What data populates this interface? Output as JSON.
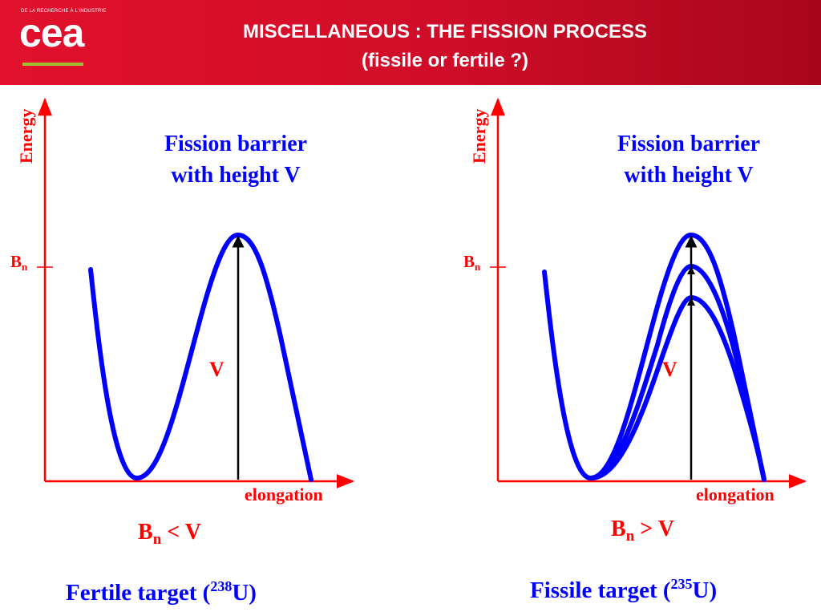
{
  "header": {
    "logo_tagline": "DE LA RECHERCHE À L'INDUSTRIE",
    "logo_text": "cea",
    "title_line1": "MISCELLANEOUS : THE FISSION PROCESS",
    "title_line2": "(fissile or fertile ?)"
  },
  "left_panel": {
    "y_axis_label": "Energy",
    "x_axis_label": "elongation",
    "bn_label": "B",
    "bn_sub": "n",
    "barrier_line1": "Fission barrier",
    "barrier_line2": "with height V",
    "v_label": "V",
    "inequality_b": "B",
    "inequality_sub": "n",
    "inequality_rest": " < V",
    "target_prefix": "Fertile target (",
    "target_mass": "238",
    "target_suffix": "U)"
  },
  "right_panel": {
    "y_axis_label": "Energy",
    "x_axis_label": "elongation",
    "bn_label": "B",
    "bn_sub": "n",
    "barrier_line1": "Fission barrier",
    "barrier_line2": "with height V",
    "v_label": "V",
    "inequality_b": "B",
    "inequality_sub": "n",
    "inequality_rest": " > V",
    "target_prefix": "Fissile target (",
    "target_mass": "235",
    "target_suffix": "U)"
  },
  "colors": {
    "header_red": "#e2102c",
    "axis_red": "#ff0000",
    "curve_blue": "#0000ff",
    "arrow_black": "#000000",
    "logo_green": "#9fc13a"
  }
}
